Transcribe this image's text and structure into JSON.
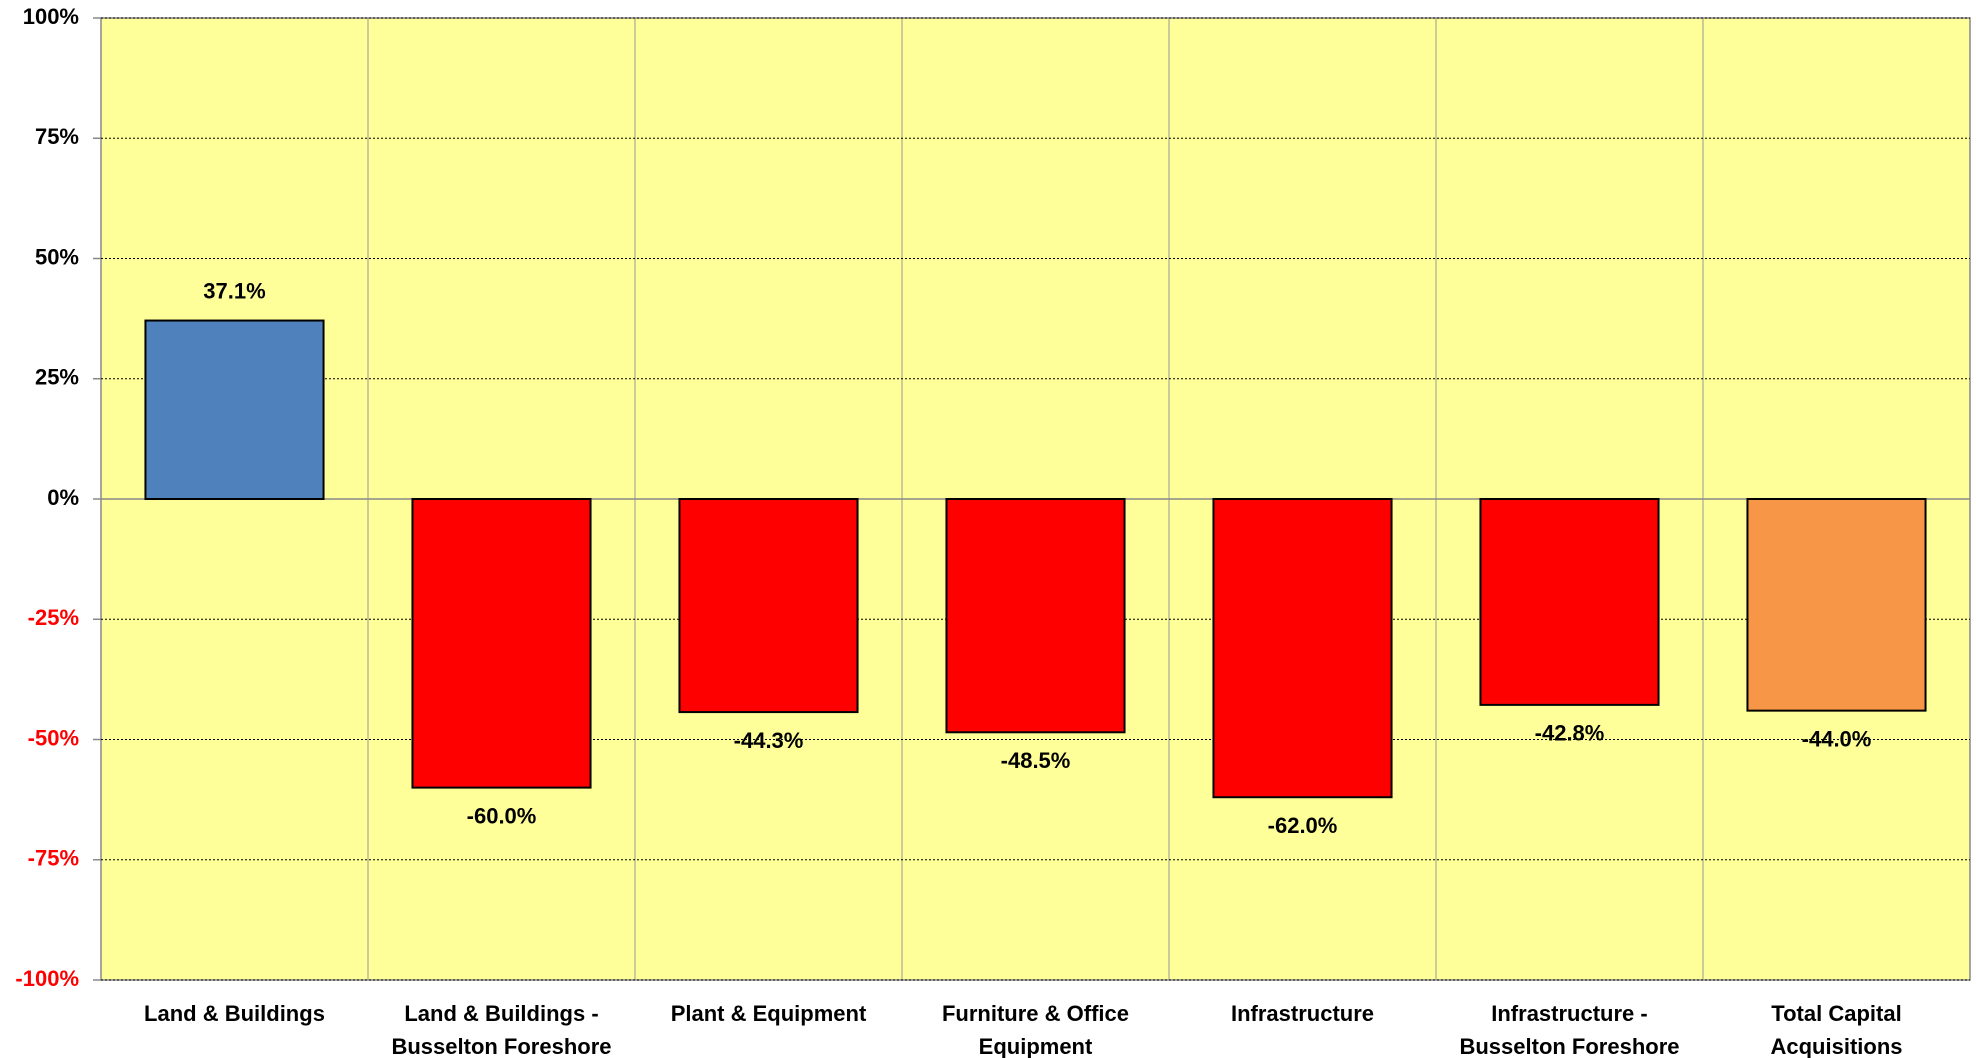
{
  "chart_data": {
    "type": "bar",
    "categories": [
      "Land & Buildings",
      "Land & Buildings - Busselton Foreshore",
      "Plant & Equipment",
      "Furniture & Office Equipment",
      "Infrastructure",
      "Infrastructure - Busselton Foreshore",
      "Total Capital Acquisitions"
    ],
    "values": [
      37.1,
      -60.0,
      -44.3,
      -48.5,
      -62.0,
      -42.8,
      -44.0
    ],
    "value_labels": [
      "37.1%",
      "-60.0%",
      "-44.3%",
      "-48.5%",
      "-62.0%",
      "-42.8%",
      "-44.0%"
    ],
    "colors": [
      "#4f81bd",
      "#ff0000",
      "#ff0000",
      "#ff0000",
      "#ff0000",
      "#ff0000",
      "#f79646"
    ],
    "ylim": [
      -100,
      100
    ],
    "yticks": [
      {
        "value": -100,
        "label": "-100%"
      },
      {
        "value": -75,
        "label": "-75%"
      },
      {
        "value": -50,
        "label": "-50%"
      },
      {
        "value": -25,
        "label": "-25%"
      },
      {
        "value": 0,
        "label": "0%"
      },
      {
        "value": 25,
        "label": "25%"
      },
      {
        "value": 50,
        "label": "50%"
      },
      {
        "value": 75,
        "label": "75%"
      },
      {
        "value": 100,
        "label": "100%"
      }
    ],
    "grid": true,
    "plot_background": "#ffff99",
    "negative_tick_color": "#ff0000"
  }
}
